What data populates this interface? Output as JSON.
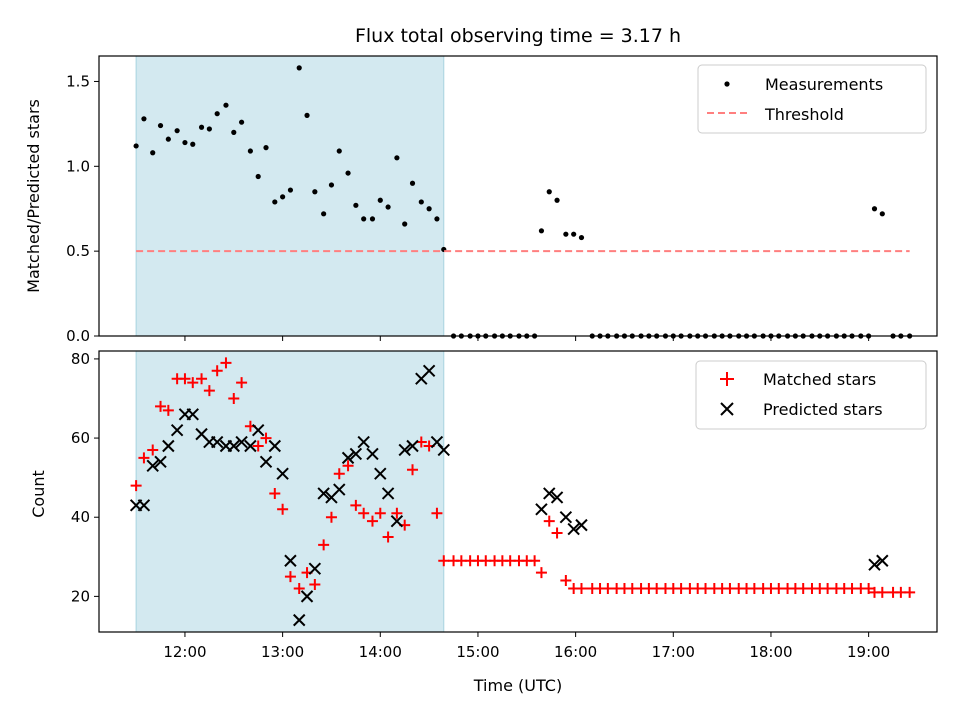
{
  "chart_data": [
    {
      "type": "scatter",
      "title": "Flux total observing time = 3.17 h",
      "ylabel": "Matched/Predicted stars",
      "ylim": [
        0,
        1.65
      ],
      "y_ticks": [
        "0.0",
        "0.5",
        "1.0",
        "1.5"
      ],
      "x_domain_hours": [
        11.12,
        19.7
      ],
      "shaded_interval_hours": [
        11.5,
        14.65
      ],
      "shade_color": "#d3e9f0",
      "legend_position": "top-right",
      "series": [
        {
          "name": "Measurements",
          "color": "#000000",
          "marker": "dot",
          "points": [
            [
              11.5,
              1.12
            ],
            [
              11.58,
              1.28
            ],
            [
              11.67,
              1.08
            ],
            [
              11.75,
              1.24
            ],
            [
              11.83,
              1.16
            ],
            [
              11.92,
              1.21
            ],
            [
              12.0,
              1.14
            ],
            [
              12.08,
              1.13
            ],
            [
              12.17,
              1.23
            ],
            [
              12.25,
              1.22
            ],
            [
              12.33,
              1.31
            ],
            [
              12.42,
              1.36
            ],
            [
              12.5,
              1.2
            ],
            [
              12.58,
              1.26
            ],
            [
              12.67,
              1.09
            ],
            [
              12.75,
              0.94
            ],
            [
              12.83,
              1.11
            ],
            [
              12.92,
              0.79
            ],
            [
              13.0,
              0.82
            ],
            [
              13.08,
              0.86
            ],
            [
              13.17,
              1.58
            ],
            [
              13.25,
              1.3
            ],
            [
              13.33,
              0.85
            ],
            [
              13.42,
              0.72
            ],
            [
              13.5,
              0.89
            ],
            [
              13.58,
              1.09
            ],
            [
              13.67,
              0.96
            ],
            [
              13.75,
              0.77
            ],
            [
              13.83,
              0.69
            ],
            [
              13.92,
              0.69
            ],
            [
              14.0,
              0.8
            ],
            [
              14.08,
              0.76
            ],
            [
              14.17,
              1.05
            ],
            [
              14.25,
              0.66
            ],
            [
              14.33,
              0.9
            ],
            [
              14.42,
              0.79
            ],
            [
              14.5,
              0.75
            ],
            [
              14.58,
              0.69
            ],
            [
              14.65,
              0.51
            ],
            [
              14.75,
              0.0
            ],
            [
              14.83,
              0.0
            ],
            [
              14.92,
              0.0
            ],
            [
              15.0,
              0.0
            ],
            [
              15.08,
              0.0
            ],
            [
              15.17,
              0.0
            ],
            [
              15.25,
              0.0
            ],
            [
              15.33,
              0.0
            ],
            [
              15.42,
              0.0
            ],
            [
              15.5,
              0.0
            ],
            [
              15.58,
              0.0
            ],
            [
              15.65,
              0.62
            ],
            [
              15.73,
              0.85
            ],
            [
              15.81,
              0.8
            ],
            [
              15.9,
              0.6
            ],
            [
              15.98,
              0.6
            ],
            [
              16.06,
              0.58
            ],
            [
              16.17,
              0.0
            ],
            [
              16.25,
              0.0
            ],
            [
              16.33,
              0.0
            ],
            [
              16.42,
              0.0
            ],
            [
              16.5,
              0.0
            ],
            [
              16.58,
              0.0
            ],
            [
              16.67,
              0.0
            ],
            [
              16.75,
              0.0
            ],
            [
              16.83,
              0.0
            ],
            [
              16.92,
              0.0
            ],
            [
              17.0,
              0.0
            ],
            [
              17.08,
              0.0
            ],
            [
              17.17,
              0.0
            ],
            [
              17.25,
              0.0
            ],
            [
              17.33,
              0.0
            ],
            [
              17.42,
              0.0
            ],
            [
              17.5,
              0.0
            ],
            [
              17.58,
              0.0
            ],
            [
              17.67,
              0.0
            ],
            [
              17.75,
              0.0
            ],
            [
              17.83,
              0.0
            ],
            [
              17.92,
              0.0
            ],
            [
              18.0,
              0.0
            ],
            [
              18.08,
              0.0
            ],
            [
              18.17,
              0.0
            ],
            [
              18.25,
              0.0
            ],
            [
              18.33,
              0.0
            ],
            [
              18.42,
              0.0
            ],
            [
              18.5,
              0.0
            ],
            [
              18.58,
              0.0
            ],
            [
              18.67,
              0.0
            ],
            [
              18.75,
              0.0
            ],
            [
              18.83,
              0.0
            ],
            [
              18.92,
              0.0
            ],
            [
              19.0,
              0.0
            ],
            [
              19.06,
              0.75
            ],
            [
              19.14,
              0.72
            ],
            [
              19.25,
              0.0
            ],
            [
              19.33,
              0.0
            ],
            [
              19.42,
              0.0
            ]
          ]
        },
        {
          "name": "Threshold",
          "color": "#ff7f7f",
          "marker": "dashed-line",
          "points": [
            [
              11.5,
              0.5
            ],
            [
              19.42,
              0.5
            ]
          ]
        }
      ]
    },
    {
      "type": "scatter",
      "xlabel": "Time (UTC)",
      "ylabel": "Count",
      "ylim": [
        11,
        82
      ],
      "y_ticks": [
        "20",
        "40",
        "60",
        "80"
      ],
      "x_ticks": [
        "12:00",
        "13:00",
        "14:00",
        "15:00",
        "16:00",
        "17:00",
        "18:00",
        "19:00"
      ],
      "x_domain_hours": [
        11.12,
        19.7
      ],
      "shaded_interval_hours": [
        11.5,
        14.65
      ],
      "shade_color": "#d3e9f0",
      "legend_position": "top-right",
      "series": [
        {
          "name": "Matched stars",
          "color": "#ff0000",
          "marker": "plus",
          "points": [
            [
              11.5,
              48
            ],
            [
              11.58,
              55
            ],
            [
              11.67,
              57
            ],
            [
              11.75,
              68
            ],
            [
              11.83,
              67
            ],
            [
              11.92,
              75
            ],
            [
              12.0,
              75
            ],
            [
              12.08,
              74
            ],
            [
              12.17,
              75
            ],
            [
              12.25,
              72
            ],
            [
              12.33,
              77
            ],
            [
              12.42,
              79
            ],
            [
              12.5,
              70
            ],
            [
              12.58,
              74
            ],
            [
              12.67,
              63
            ],
            [
              12.75,
              58
            ],
            [
              12.83,
              60
            ],
            [
              12.92,
              46
            ],
            [
              13.0,
              42
            ],
            [
              13.08,
              25
            ],
            [
              13.17,
              22
            ],
            [
              13.25,
              26
            ],
            [
              13.33,
              23
            ],
            [
              13.42,
              33
            ],
            [
              13.5,
              40
            ],
            [
              13.58,
              51
            ],
            [
              13.67,
              53
            ],
            [
              13.75,
              43
            ],
            [
              13.83,
              41
            ],
            [
              13.92,
              39
            ],
            [
              14.0,
              41
            ],
            [
              14.08,
              35
            ],
            [
              14.17,
              41
            ],
            [
              14.25,
              38
            ],
            [
              14.33,
              52
            ],
            [
              14.42,
              59
            ],
            [
              14.5,
              58
            ],
            [
              14.58,
              41
            ],
            [
              14.65,
              29
            ],
            [
              14.75,
              29
            ],
            [
              14.83,
              29
            ],
            [
              14.92,
              29
            ],
            [
              15.0,
              29
            ],
            [
              15.08,
              29
            ],
            [
              15.17,
              29
            ],
            [
              15.25,
              29
            ],
            [
              15.33,
              29
            ],
            [
              15.42,
              29
            ],
            [
              15.5,
              29
            ],
            [
              15.58,
              29
            ],
            [
              15.65,
              26
            ],
            [
              15.73,
              39
            ],
            [
              15.81,
              36
            ],
            [
              15.9,
              24
            ],
            [
              15.98,
              22
            ],
            [
              16.06,
              22
            ],
            [
              16.17,
              22
            ],
            [
              16.25,
              22
            ],
            [
              16.33,
              22
            ],
            [
              16.42,
              22
            ],
            [
              16.5,
              22
            ],
            [
              16.58,
              22
            ],
            [
              16.67,
              22
            ],
            [
              16.75,
              22
            ],
            [
              16.83,
              22
            ],
            [
              16.92,
              22
            ],
            [
              17.0,
              22
            ],
            [
              17.08,
              22
            ],
            [
              17.17,
              22
            ],
            [
              17.25,
              22
            ],
            [
              17.33,
              22
            ],
            [
              17.42,
              22
            ],
            [
              17.5,
              22
            ],
            [
              17.58,
              22
            ],
            [
              17.67,
              22
            ],
            [
              17.75,
              22
            ],
            [
              17.83,
              22
            ],
            [
              17.92,
              22
            ],
            [
              18.0,
              22
            ],
            [
              18.08,
              22
            ],
            [
              18.17,
              22
            ],
            [
              18.25,
              22
            ],
            [
              18.33,
              22
            ],
            [
              18.42,
              22
            ],
            [
              18.5,
              22
            ],
            [
              18.58,
              22
            ],
            [
              18.67,
              22
            ],
            [
              18.75,
              22
            ],
            [
              18.83,
              22
            ],
            [
              18.92,
              22
            ],
            [
              19.0,
              22
            ],
            [
              19.06,
              21
            ],
            [
              19.14,
              21
            ],
            [
              19.25,
              21
            ],
            [
              19.33,
              21
            ],
            [
              19.42,
              21
            ]
          ]
        },
        {
          "name": "Predicted stars",
          "color": "#000000",
          "marker": "x",
          "points": [
            [
              11.5,
              43
            ],
            [
              11.58,
              43
            ],
            [
              11.67,
              53
            ],
            [
              11.75,
              54
            ],
            [
              11.83,
              58
            ],
            [
              11.92,
              62
            ],
            [
              12.0,
              66
            ],
            [
              12.08,
              66
            ],
            [
              12.17,
              61
            ],
            [
              12.25,
              59
            ],
            [
              12.33,
              59
            ],
            [
              12.42,
              58
            ],
            [
              12.5,
              58
            ],
            [
              12.58,
              59
            ],
            [
              12.67,
              58
            ],
            [
              12.75,
              62
            ],
            [
              12.83,
              54
            ],
            [
              12.92,
              58
            ],
            [
              13.0,
              51
            ],
            [
              13.08,
              29
            ],
            [
              13.17,
              14
            ],
            [
              13.25,
              20
            ],
            [
              13.33,
              27
            ],
            [
              13.42,
              46
            ],
            [
              13.5,
              45
            ],
            [
              13.58,
              47
            ],
            [
              13.67,
              55
            ],
            [
              13.75,
              56
            ],
            [
              13.83,
              59
            ],
            [
              13.92,
              56
            ],
            [
              14.0,
              51
            ],
            [
              14.08,
              46
            ],
            [
              14.17,
              39
            ],
            [
              14.25,
              57
            ],
            [
              14.33,
              58
            ],
            [
              14.42,
              75
            ],
            [
              14.5,
              77
            ],
            [
              14.58,
              59
            ],
            [
              14.65,
              57
            ],
            [
              15.65,
              42
            ],
            [
              15.73,
              46
            ],
            [
              15.81,
              45
            ],
            [
              15.9,
              40
            ],
            [
              15.98,
              37
            ],
            [
              16.06,
              38
            ],
            [
              19.06,
              28
            ],
            [
              19.14,
              29
            ]
          ]
        }
      ]
    }
  ]
}
